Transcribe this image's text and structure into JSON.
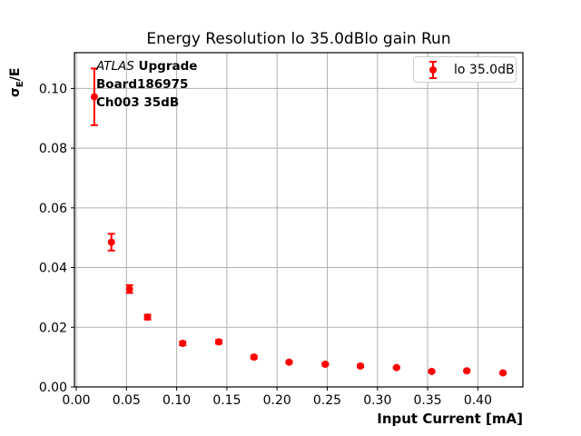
{
  "chart_data": {
    "type": "scatter",
    "title": "Energy Resolution lo 35.0dBlo gain Run",
    "xlabel": "Input Current [mA]",
    "ylabel": "σE/E",
    "ylabel_parts": {
      "sigma": "σ",
      "sub": "E",
      "rest": "/E"
    },
    "xlim": [
      0,
      0.445
    ],
    "ylim": [
      0,
      0.112
    ],
    "grid": true,
    "legend_position": "upper right",
    "xticks": {
      "values": [
        0.0,
        0.05,
        0.1,
        0.15,
        0.2,
        0.25,
        0.3,
        0.35,
        0.4
      ],
      "labels": [
        "0.00",
        "0.05",
        "0.10",
        "0.15",
        "0.20",
        "0.25",
        "0.30",
        "0.35",
        "0.40"
      ]
    },
    "yticks": {
      "values": [
        0.0,
        0.02,
        0.04,
        0.06,
        0.08,
        0.1
      ],
      "labels": [
        "0.00",
        "0.02",
        "0.04",
        "0.06",
        "0.08",
        "0.10"
      ]
    },
    "legend": {
      "entries": [
        {
          "label": "lo 35.0dB",
          "color": "#ff0000",
          "marker": "errorbar-point"
        }
      ]
    },
    "annotation": {
      "experiment": "ATLAS",
      "program": " Upgrade",
      "board": "Board186975",
      "channel": "Ch003 35dB"
    },
    "series": [
      {
        "name": "lo 35.0dB",
        "color": "#ff0000",
        "marker": "circle",
        "x": [
          0.018,
          0.035,
          0.053,
          0.071,
          0.106,
          0.142,
          0.177,
          0.212,
          0.248,
          0.283,
          0.319,
          0.354,
          0.389,
          0.425
        ],
        "y": [
          0.0972,
          0.0485,
          0.0328,
          0.0234,
          0.0146,
          0.0151,
          0.01,
          0.0083,
          0.0076,
          0.007,
          0.0065,
          0.0052,
          0.0054,
          0.0047
        ],
        "yerr": [
          0.0095,
          0.0028,
          0.0013,
          0.0008,
          0.0006,
          0.0006,
          0.0005,
          0.0004,
          0.0004,
          0.0004,
          0.0003,
          0.0003,
          0.0003,
          0.0003
        ]
      }
    ],
    "colors": {
      "series": "#ff0000",
      "grid": "#b0b0b0",
      "axis": "#000000",
      "text": "#000000",
      "legend_border": "#cccccc",
      "background": "#ffffff"
    }
  }
}
